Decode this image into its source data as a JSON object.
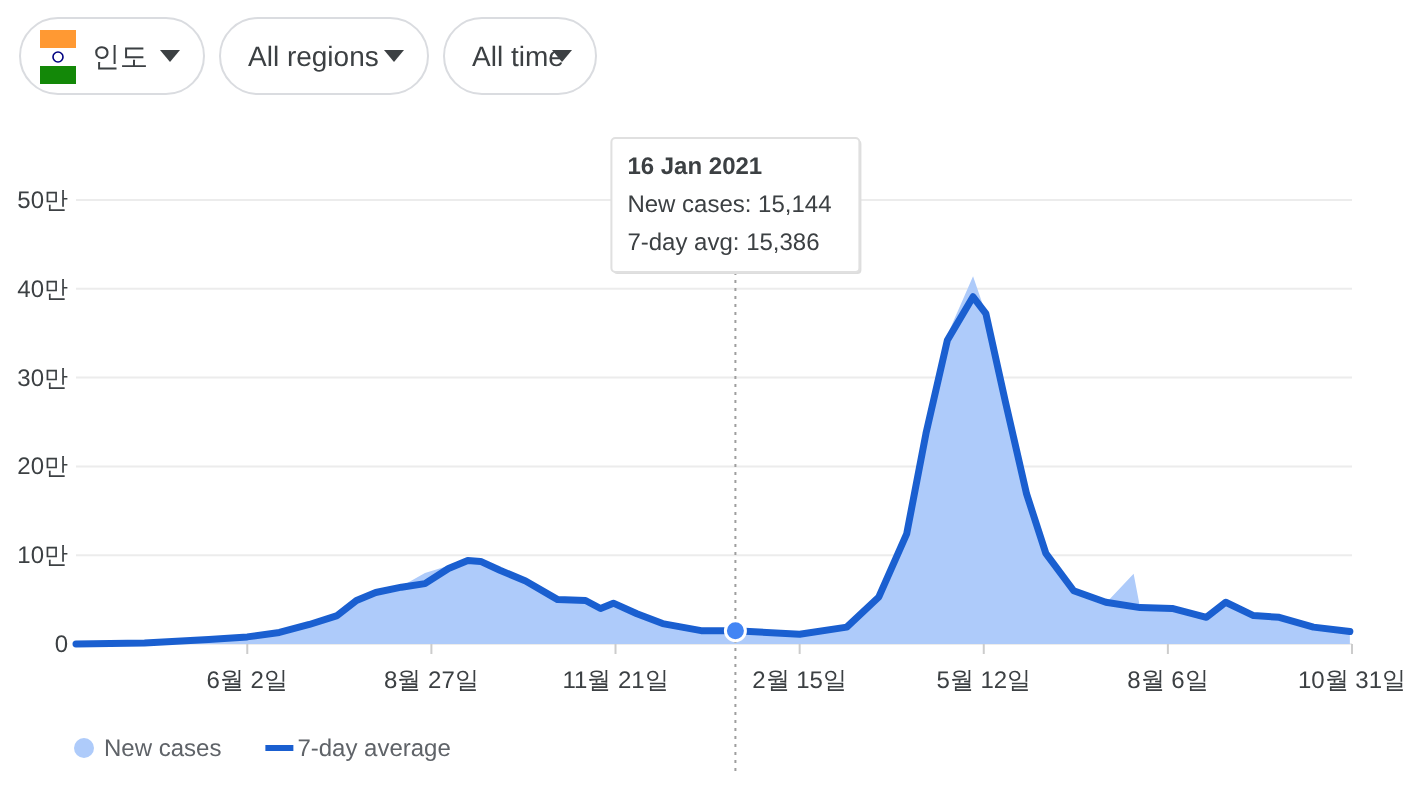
{
  "chart_data": {
    "type": "line",
    "xlim": [
      "2020-03-14",
      "2021-10-31"
    ],
    "ylim": [
      0,
      50
    ],
    "xticks": [
      {
        "value": "2020-06-02",
        "label": "6월 2일"
      },
      {
        "value": "2020-08-27",
        "label": "8월 27일"
      },
      {
        "value": "2020-11-21",
        "label": "11월 21일"
      },
      {
        "value": "2021-02-15",
        "label": "2월 15일"
      },
      {
        "value": "2021-05-12",
        "label": "5월 12일"
      },
      {
        "value": "2021-08-06",
        "label": "8월 6일"
      },
      {
        "value": "2021-10-31",
        "label": "10월 31일"
      }
    ],
    "yticks": [
      0,
      {
        "value": 10,
        "label": "10만"
      },
      {
        "value": 20,
        "label": "20만"
      },
      {
        "value": 30,
        "label": "30만"
      },
      {
        "value": 40,
        "label": "40만"
      },
      {
        "value": 50,
        "label": "50만"
      }
    ],
    "grid": "y",
    "legend": "bottom left",
    "series": [
      {
        "name": "New cases",
        "type": "area",
        "color": "#aecbfa",
        "x": [
          "2020-03-14",
          "2020-04-15",
          "2020-05-15",
          "2020-06-02",
          "2020-06-17",
          "2020-07-01",
          "2020-07-14",
          "2020-07-23",
          "2020-08-01",
          "2020-08-13",
          "2020-08-24",
          "2020-09-04",
          "2020-09-13",
          "2020-09-19",
          "2020-09-28",
          "2020-10-10",
          "2020-10-25",
          "2020-11-07",
          "2020-11-14",
          "2020-11-20",
          "2020-12-01",
          "2020-12-13",
          "2020-12-31",
          "2021-01-16",
          "2021-02-15",
          "2021-03-09",
          "2021-03-24",
          "2021-04-06",
          "2021-04-15",
          "2021-04-25",
          "2021-05-07",
          "2021-05-13",
          "2021-05-22",
          "2021-06-01",
          "2021-06-10",
          "2021-06-23",
          "2021-07-08",
          "2021-07-21",
          "2021-07-24",
          "2021-08-08",
          "2021-08-24",
          "2021-09-02",
          "2021-09-15",
          "2021-09-27",
          "2021-10-13",
          "2021-10-30"
        ],
        "values": [
          0,
          0.1,
          0.5,
          0.8,
          1.3,
          2.2,
          3.3,
          5.0,
          5.8,
          6.5,
          8.0,
          8.8,
          9.6,
          9.3,
          8.3,
          7.1,
          5.0,
          4.9,
          4.0,
          4.6,
          3.4,
          2.3,
          1.5,
          1.5,
          1.1,
          1.9,
          5.5,
          12.6,
          24,
          34.8,
          41.4,
          37.2,
          27,
          16.5,
          10,
          6.0,
          4.6,
          7.9,
          4.1,
          4.0,
          3.0,
          4.7,
          3.2,
          3.0,
          1.9,
          1.4
        ]
      },
      {
        "name": "7-day average",
        "color": "#1a5fd0",
        "x": [
          "2020-03-14",
          "2020-04-15",
          "2020-05-15",
          "2020-06-02",
          "2020-06-17",
          "2020-07-01",
          "2020-07-14",
          "2020-07-23",
          "2020-08-01",
          "2020-08-13",
          "2020-08-24",
          "2020-09-04",
          "2020-09-13",
          "2020-09-19",
          "2020-09-28",
          "2020-10-10",
          "2020-10-25",
          "2020-11-07",
          "2020-11-14",
          "2020-11-20",
          "2020-12-01",
          "2020-12-13",
          "2020-12-31",
          "2021-01-16",
          "2021-02-15",
          "2021-03-09",
          "2021-03-24",
          "2021-04-06",
          "2021-04-15",
          "2021-04-25",
          "2021-05-07",
          "2021-05-13",
          "2021-05-22",
          "2021-06-01",
          "2021-06-10",
          "2021-06-23",
          "2021-07-08",
          "2021-07-24",
          "2021-08-08",
          "2021-08-24",
          "2021-09-02",
          "2021-09-15",
          "2021-09-27",
          "2021-10-13",
          "2021-10-30"
        ],
        "values": [
          0,
          0.1,
          0.5,
          0.8,
          1.3,
          2.2,
          3.2,
          4.9,
          5.8,
          6.4,
          6.8,
          8.5,
          9.4,
          9.3,
          8.3,
          7.1,
          5.0,
          4.9,
          4.0,
          4.6,
          3.4,
          2.3,
          1.5,
          1.5,
          1.1,
          1.9,
          5.3,
          12.4,
          23.7,
          34.2,
          39.1,
          37.2,
          27.4,
          16.9,
          10.2,
          6.0,
          4.7,
          4.1,
          4.0,
          3.0,
          4.7,
          3.2,
          3.0,
          1.9,
          1.4
        ]
      }
    ],
    "ref_lines": [
      {
        "axis": "x",
        "value": "2021-01-16",
        "color": "#9e9e9e",
        "line_style": "dotted"
      }
    ],
    "annotations": [
      "인도",
      "All regions",
      "All time",
      "16 Jan 2021\nNew cases: 15,144\n7-day avg: 15,386"
    ]
  }
}
